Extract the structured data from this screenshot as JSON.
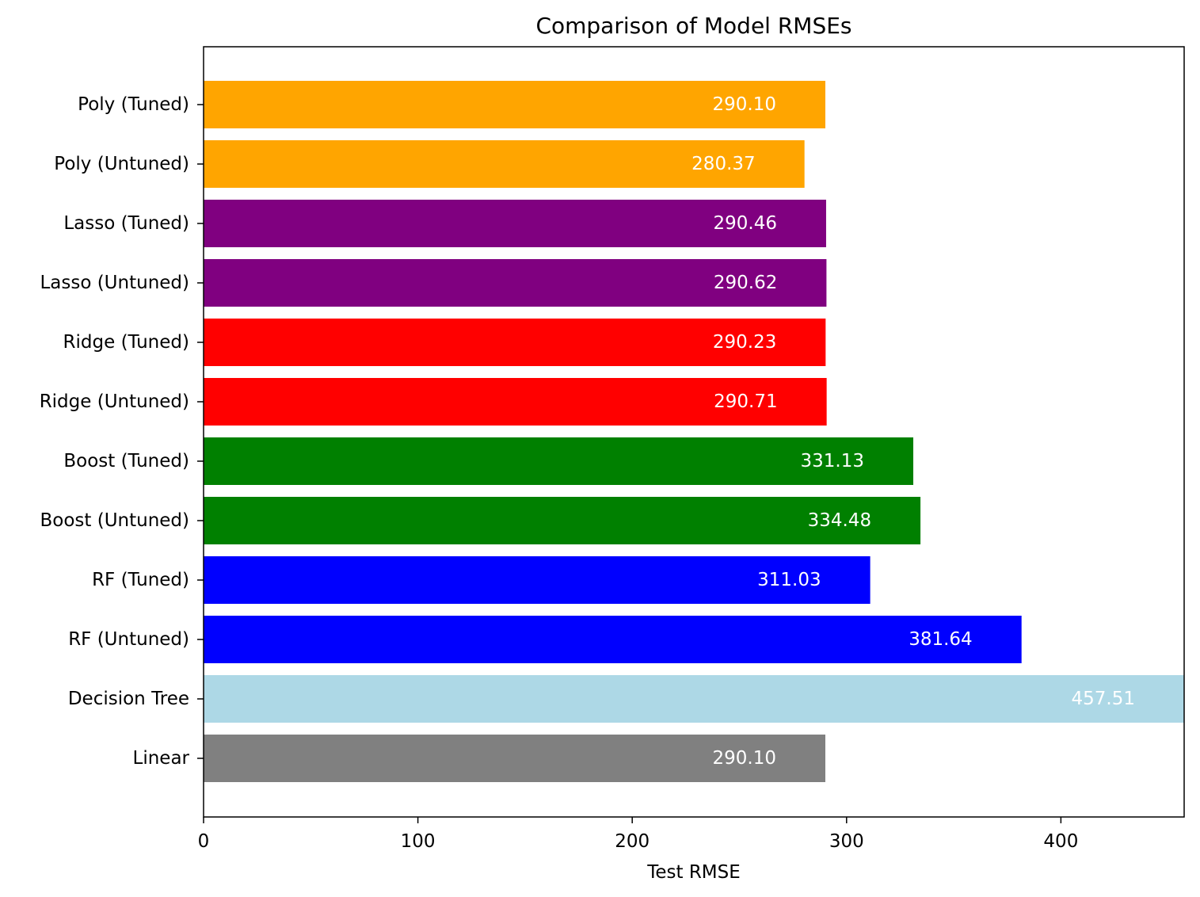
{
  "chart_data": {
    "type": "bar",
    "orientation": "horizontal",
    "title": "Comparison of Model RMSEs",
    "xlabel": "Test RMSE",
    "ylabel": "",
    "xlim": [
      0,
      457.51
    ],
    "xticks": [
      0,
      100,
      200,
      300,
      400
    ],
    "grid": false,
    "label_color": "#ffffff",
    "bars": [
      {
        "category": "Linear",
        "value": 290.1,
        "label": "290.10",
        "color": "#808080"
      },
      {
        "category": "Decision Tree",
        "value": 457.51,
        "label": "457.51",
        "color": "#add8e6"
      },
      {
        "category": "RF (Untuned)",
        "value": 381.64,
        "label": "381.64",
        "color": "#0000ff"
      },
      {
        "category": "RF (Tuned)",
        "value": 311.03,
        "label": "311.03",
        "color": "#0000ff"
      },
      {
        "category": "Boost (Untuned)",
        "value": 334.48,
        "label": "334.48",
        "color": "#008000"
      },
      {
        "category": "Boost (Tuned)",
        "value": 331.13,
        "label": "331.13",
        "color": "#008000"
      },
      {
        "category": "Ridge (Untuned)",
        "value": 290.71,
        "label": "290.71",
        "color": "#ff0000"
      },
      {
        "category": "Ridge (Tuned)",
        "value": 290.23,
        "label": "290.23",
        "color": "#ff0000"
      },
      {
        "category": "Lasso (Untuned)",
        "value": 290.62,
        "label": "290.62",
        "color": "#800080"
      },
      {
        "category": "Lasso (Tuned)",
        "value": 290.46,
        "label": "290.46",
        "color": "#800080"
      },
      {
        "category": "Poly (Untuned)",
        "value": 280.37,
        "label": "280.37",
        "color": "#ffa500"
      },
      {
        "category": "Poly (Tuned)",
        "value": 290.1,
        "label": "290.10",
        "color": "#ffa500"
      }
    ]
  }
}
